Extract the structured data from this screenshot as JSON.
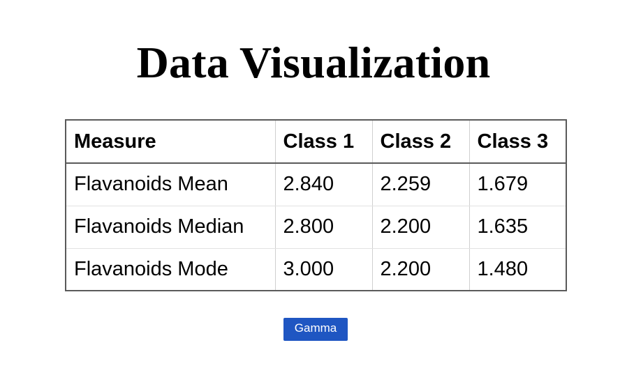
{
  "page": {
    "title": "Data Visualization"
  },
  "table": {
    "headers": [
      "Measure",
      "Class 1",
      "Class 2",
      "Class 3"
    ],
    "rows": [
      [
        "Flavanoids Mean",
        "2.840",
        "2.259",
        "1.679"
      ],
      [
        "Flavanoids Median",
        "2.800",
        "2.200",
        "1.635"
      ],
      [
        "Flavanoids Mode",
        "3.000",
        "2.200",
        "1.480"
      ]
    ]
  },
  "actions": {
    "gamma_label": "Gamma"
  },
  "colors": {
    "button_bg": "#1f56c2",
    "button_text": "#ffffff",
    "table_border": "#5a5a5a",
    "text": "#000000"
  }
}
